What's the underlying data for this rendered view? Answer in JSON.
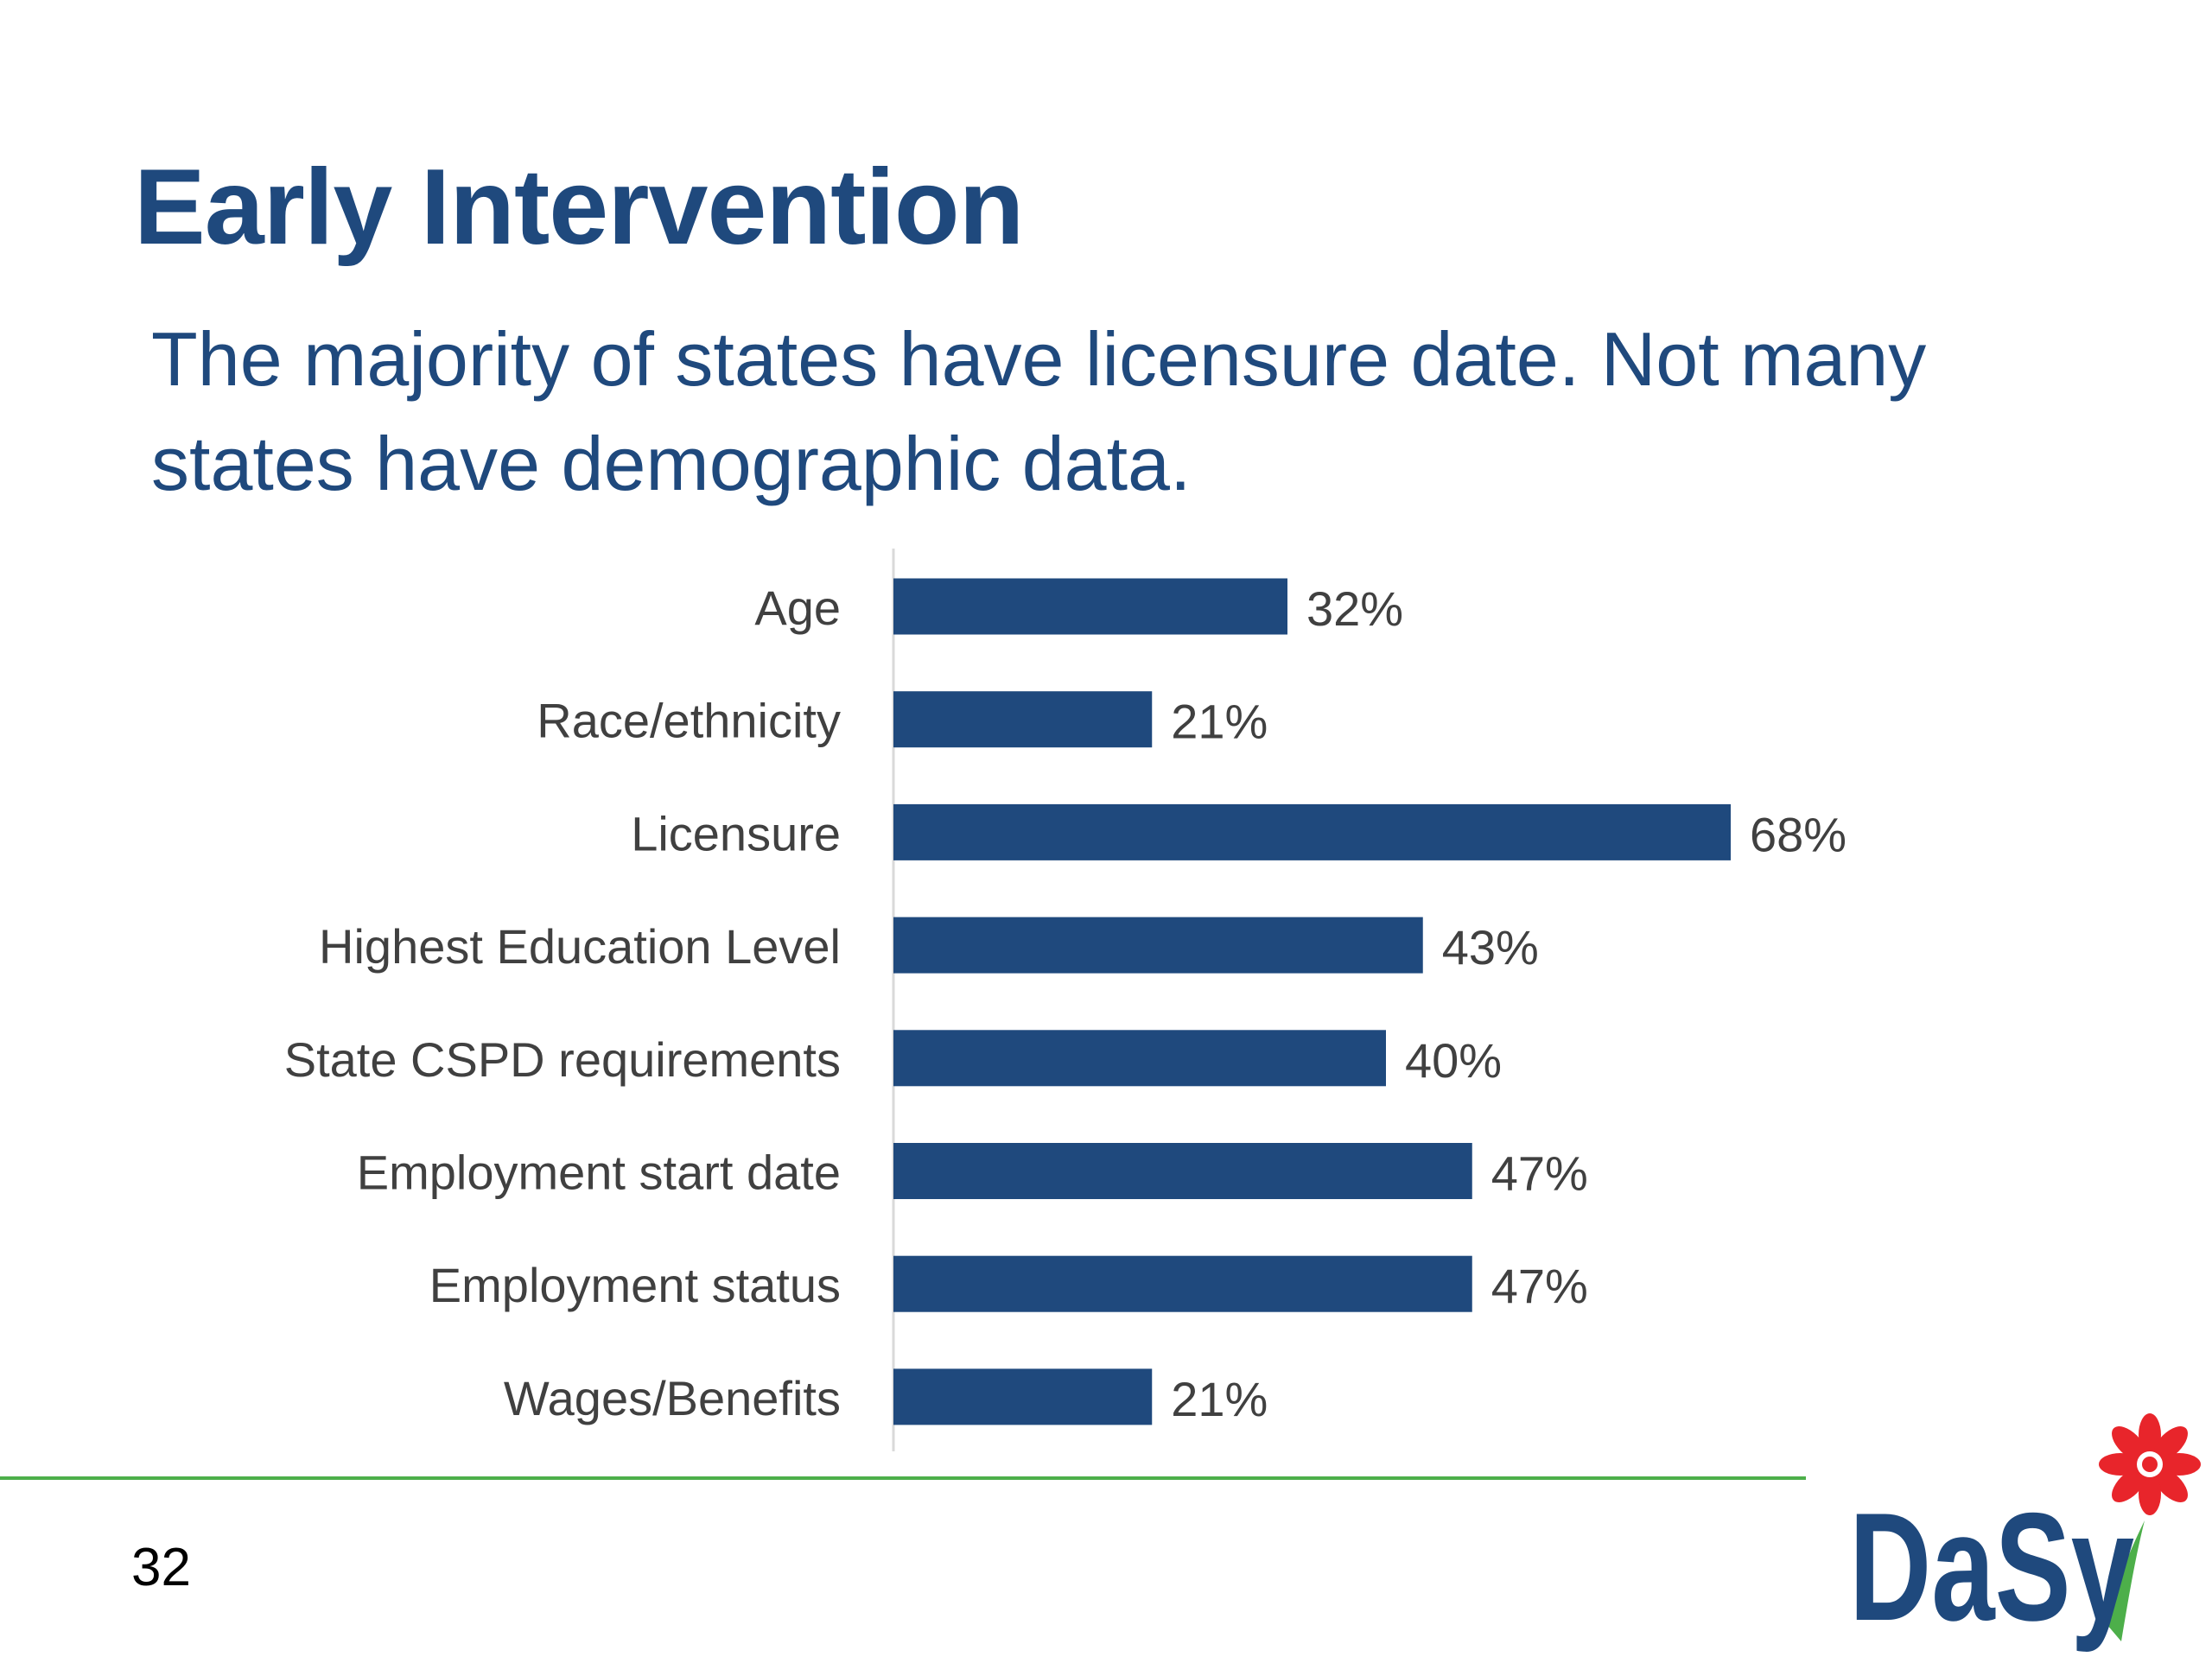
{
  "slide": {
    "title": "Early Intervention",
    "subtitle": "The majority of states have licensure date.  Not many states have demographic data.",
    "page_number": "32"
  },
  "logo": {
    "text": "DaSy",
    "colors": {
      "text": "#1f497d",
      "flower": "#e8252b",
      "leaf": "#4daf4a"
    }
  },
  "colors": {
    "title": "#1f497d",
    "bar": "#1f497d",
    "category_label": "#404040",
    "value_label": "#404040",
    "axis": "#d9d9d9",
    "footer_rule": "#4daf4a"
  },
  "chart_data": {
    "type": "bar",
    "orientation": "horizontal",
    "categories": [
      "Age",
      "Race/ethnicity",
      "Licensure",
      "Highest Education Level",
      "State CSPD requirements",
      "Employment start date",
      "Employment status",
      "Wages/Benefits"
    ],
    "values": [
      32,
      21,
      68,
      43,
      40,
      47,
      47,
      21
    ],
    "value_labels": [
      "32%",
      "21%",
      "68%",
      "43%",
      "40%",
      "47%",
      "47%",
      "21%"
    ],
    "unit": "%",
    "xlim": [
      0,
      100
    ],
    "grid": false,
    "legend": "none"
  }
}
